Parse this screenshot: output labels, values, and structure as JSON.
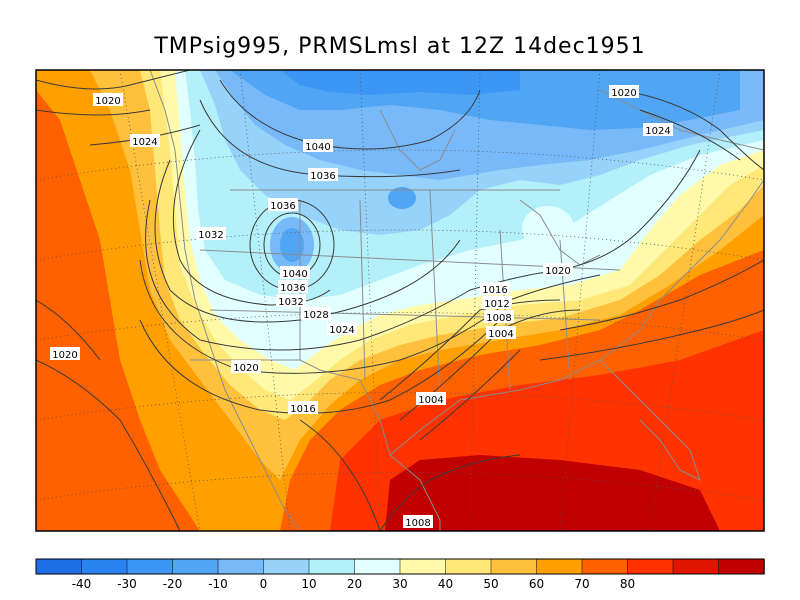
{
  "title": "TMPsig995, PRMSLmsl at 12Z  14dec1951",
  "colorbar": {
    "colors": [
      "#1e6ee6",
      "#2882f0",
      "#3c96f5",
      "#50a5f5",
      "#78b9fa",
      "#96d2fa",
      "#b4f0fa",
      "#e1ffff",
      "#fffaaa",
      "#ffe878",
      "#ffc03c",
      "#ffa000",
      "#ff6000",
      "#ff3200",
      "#e11400",
      "#c00000"
    ],
    "tick_labels": [
      "-40",
      "-30",
      "-20",
      "-10",
      "0",
      "10",
      "20",
      "30",
      "40",
      "50",
      "60",
      "70",
      "80"
    ]
  },
  "isobar_labels": [
    {
      "text": "1020"
    },
    {
      "text": "1024"
    },
    {
      "text": "1020"
    },
    {
      "text": "1024"
    },
    {
      "text": "1040"
    },
    {
      "text": "1036"
    },
    {
      "text": "1036"
    },
    {
      "text": "1032"
    },
    {
      "text": "1040"
    },
    {
      "text": "1036"
    },
    {
      "text": "1032"
    },
    {
      "text": "1028"
    },
    {
      "text": "1024"
    },
    {
      "text": "1020"
    },
    {
      "text": "1016"
    },
    {
      "text": "1012"
    },
    {
      "text": "1008"
    },
    {
      "text": "1004"
    },
    {
      "text": "1020"
    },
    {
      "text": "1020"
    },
    {
      "text": "1016"
    },
    {
      "text": "1004"
    },
    {
      "text": "1008"
    }
  ]
}
